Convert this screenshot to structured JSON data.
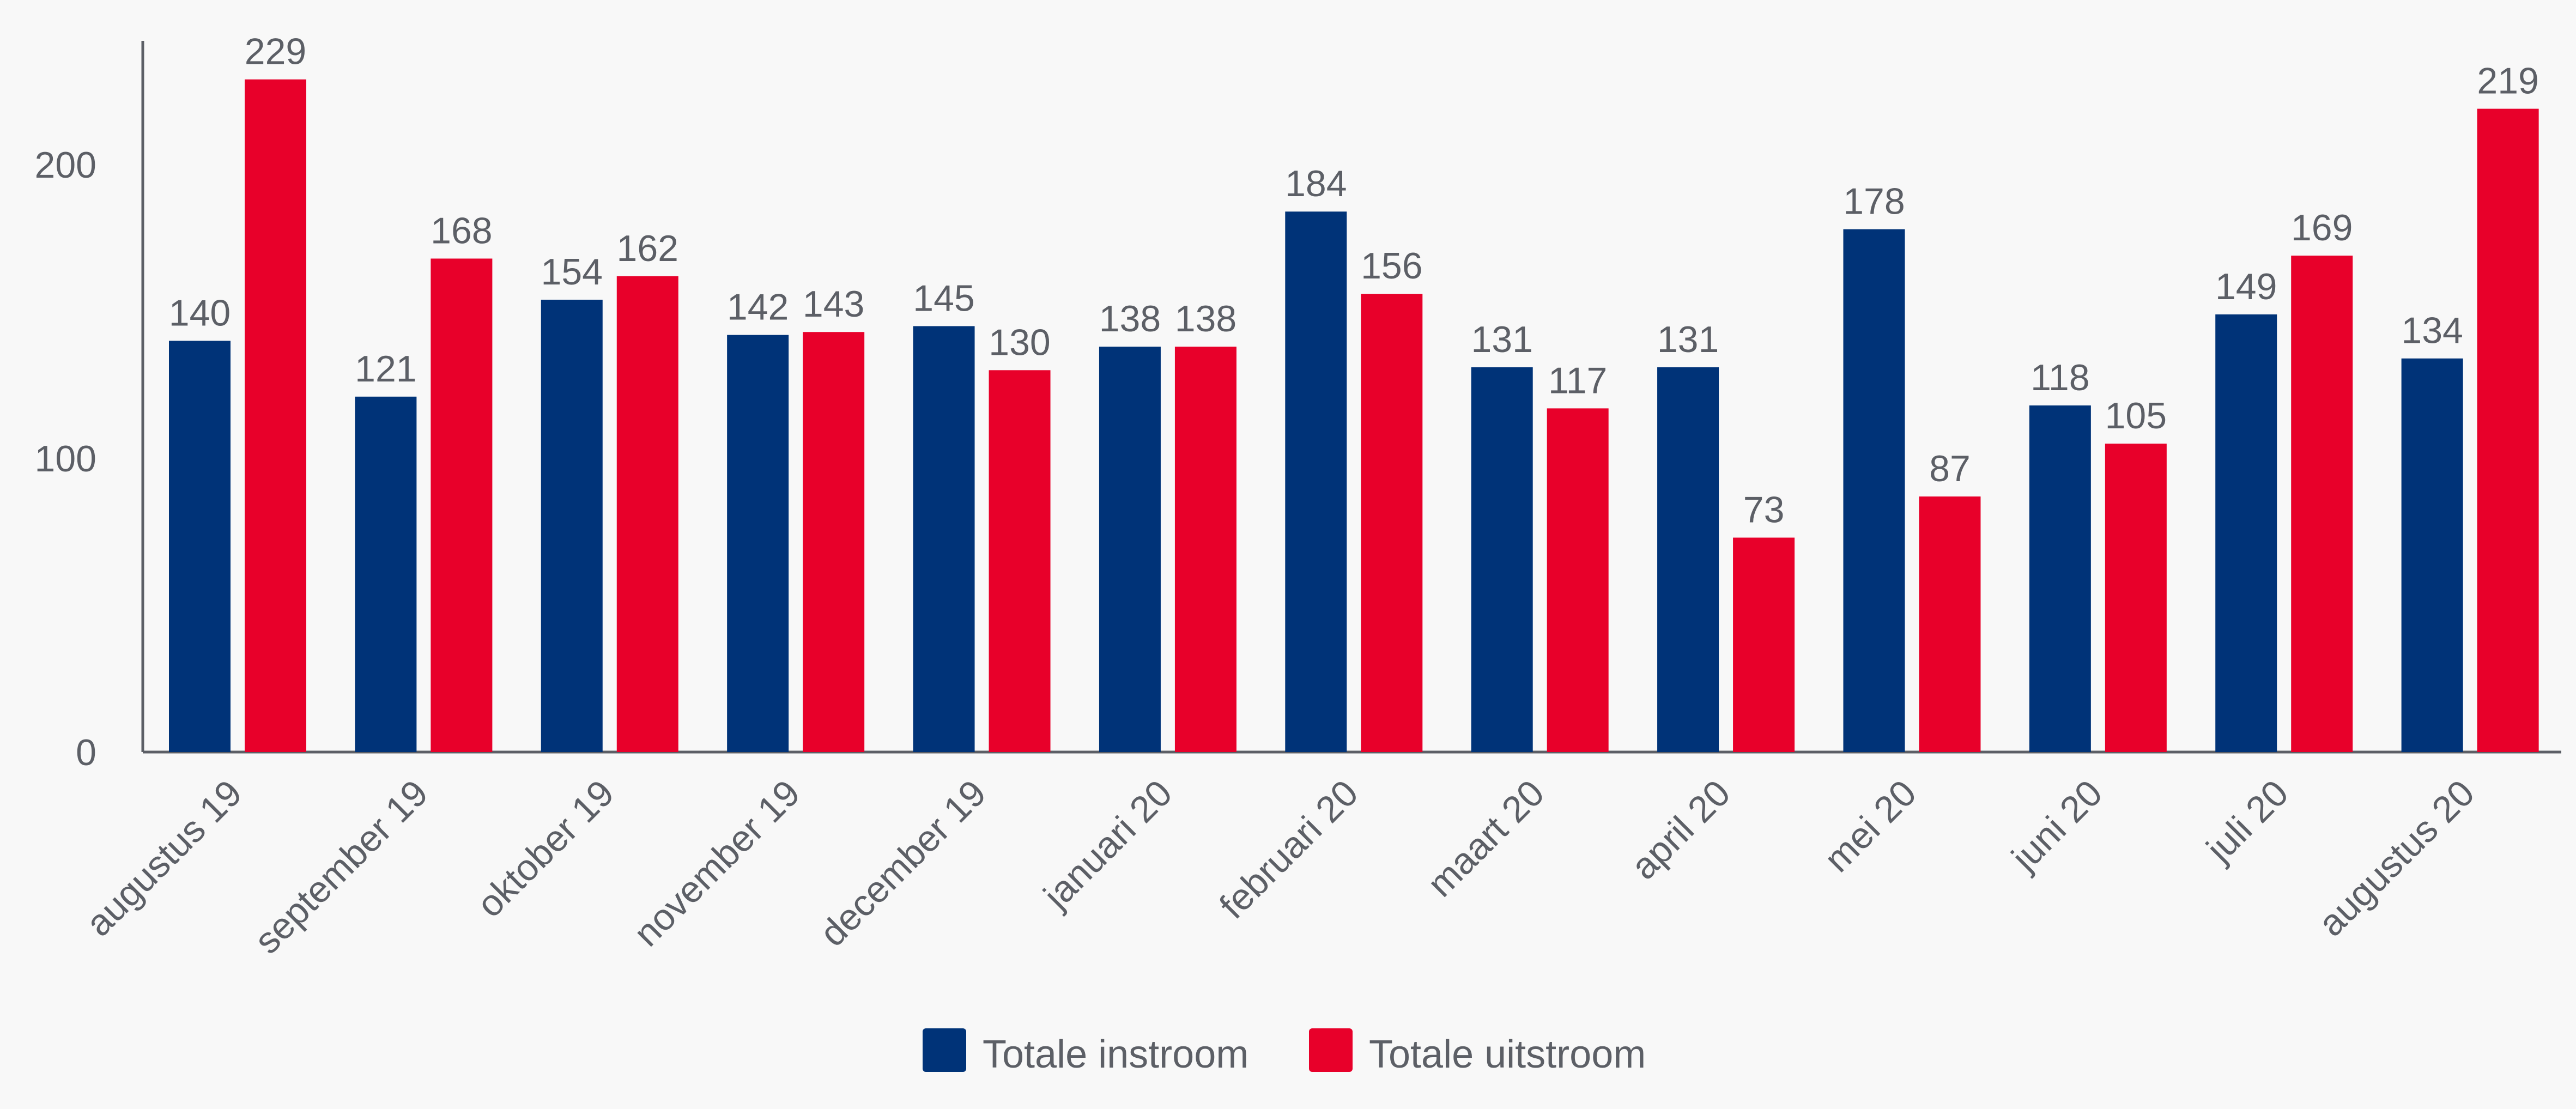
{
  "chart_data": {
    "type": "bar",
    "title": "",
    "xlabel": "",
    "ylabel": "",
    "ylim": [
      0,
      240
    ],
    "yticks": [
      0,
      100,
      200
    ],
    "grid": false,
    "legend_position": "bottom-center",
    "categories": [
      "augustus 19",
      "september 19",
      "oktober 19",
      "november 19",
      "december 19",
      "januari 20",
      "februari 20",
      "maart 20",
      "april 20",
      "mei 20",
      "juni 20",
      "juli 20",
      "augustus 20"
    ],
    "series": [
      {
        "name": "Totale instroom",
        "color": "#003378",
        "values": [
          140,
          121,
          154,
          142,
          145,
          138,
          184,
          131,
          131,
          178,
          118,
          149,
          134
        ]
      },
      {
        "name": "Totale uitstroom",
        "color": "#e8002a",
        "values": [
          229,
          168,
          162,
          143,
          130,
          138,
          156,
          117,
          73,
          87,
          105,
          169,
          219
        ]
      }
    ]
  }
}
